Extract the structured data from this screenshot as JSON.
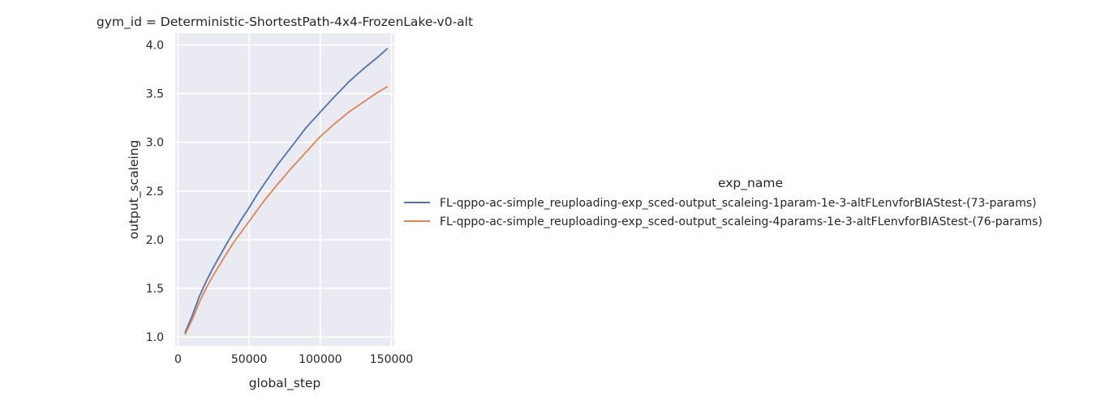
{
  "chart_data": {
    "type": "line",
    "title": "gym_id = Deterministic-ShortestPath-4x4-FrozenLake-v0-alt",
    "xlabel": "global_step",
    "ylabel": "output_scaleing",
    "xlim": [
      -2000,
      152000
    ],
    "ylim": [
      0.91,
      4.12
    ],
    "xticks": [
      0,
      50000,
      100000,
      150000
    ],
    "xtick_labels": [
      "0",
      "50000",
      "100000",
      "150000"
    ],
    "yticks": [
      1.0,
      1.5,
      2.0,
      2.5,
      3.0,
      3.5,
      4.0
    ],
    "ytick_labels": [
      "1.0",
      "1.5",
      "2.0",
      "2.5",
      "3.0",
      "3.5",
      "4.0"
    ],
    "grid": true,
    "legend": {
      "title": "exp_name",
      "placement": "right"
    },
    "series": [
      {
        "name": "FL-qppo-ac-simple_reuploading-exp_sced-output_scaleing-1param-1e-3-altFLenvforBIAStest-(73-params)",
        "color": "#4c72b0",
        "x": [
          5000,
          10000,
          15000,
          20000,
          25000,
          30000,
          35000,
          40000,
          45000,
          50000,
          55000,
          60000,
          70000,
          80000,
          90000,
          100000,
          110000,
          120000,
          130000,
          140000,
          147000
        ],
        "y": [
          1.05,
          1.22,
          1.42,
          1.58,
          1.72,
          1.85,
          1.98,
          2.1,
          2.22,
          2.33,
          2.45,
          2.56,
          2.77,
          2.96,
          3.15,
          3.31,
          3.47,
          3.62,
          3.75,
          3.87,
          3.96
        ]
      },
      {
        "name": "FL-qppo-ac-simple_reuploading-exp_sced-output_scaleing-4params-1e-3-altFLenvforBIAStest-(76-params)",
        "color": "#dd8452",
        "x": [
          5000,
          10000,
          15000,
          20000,
          25000,
          30000,
          35000,
          40000,
          45000,
          50000,
          55000,
          60000,
          70000,
          80000,
          90000,
          100000,
          110000,
          120000,
          130000,
          140000,
          147000
        ],
        "y": [
          1.03,
          1.18,
          1.36,
          1.51,
          1.64,
          1.76,
          1.88,
          1.99,
          2.09,
          2.19,
          2.29,
          2.39,
          2.57,
          2.74,
          2.9,
          3.06,
          3.19,
          3.31,
          3.41,
          3.51,
          3.57
        ]
      }
    ]
  }
}
